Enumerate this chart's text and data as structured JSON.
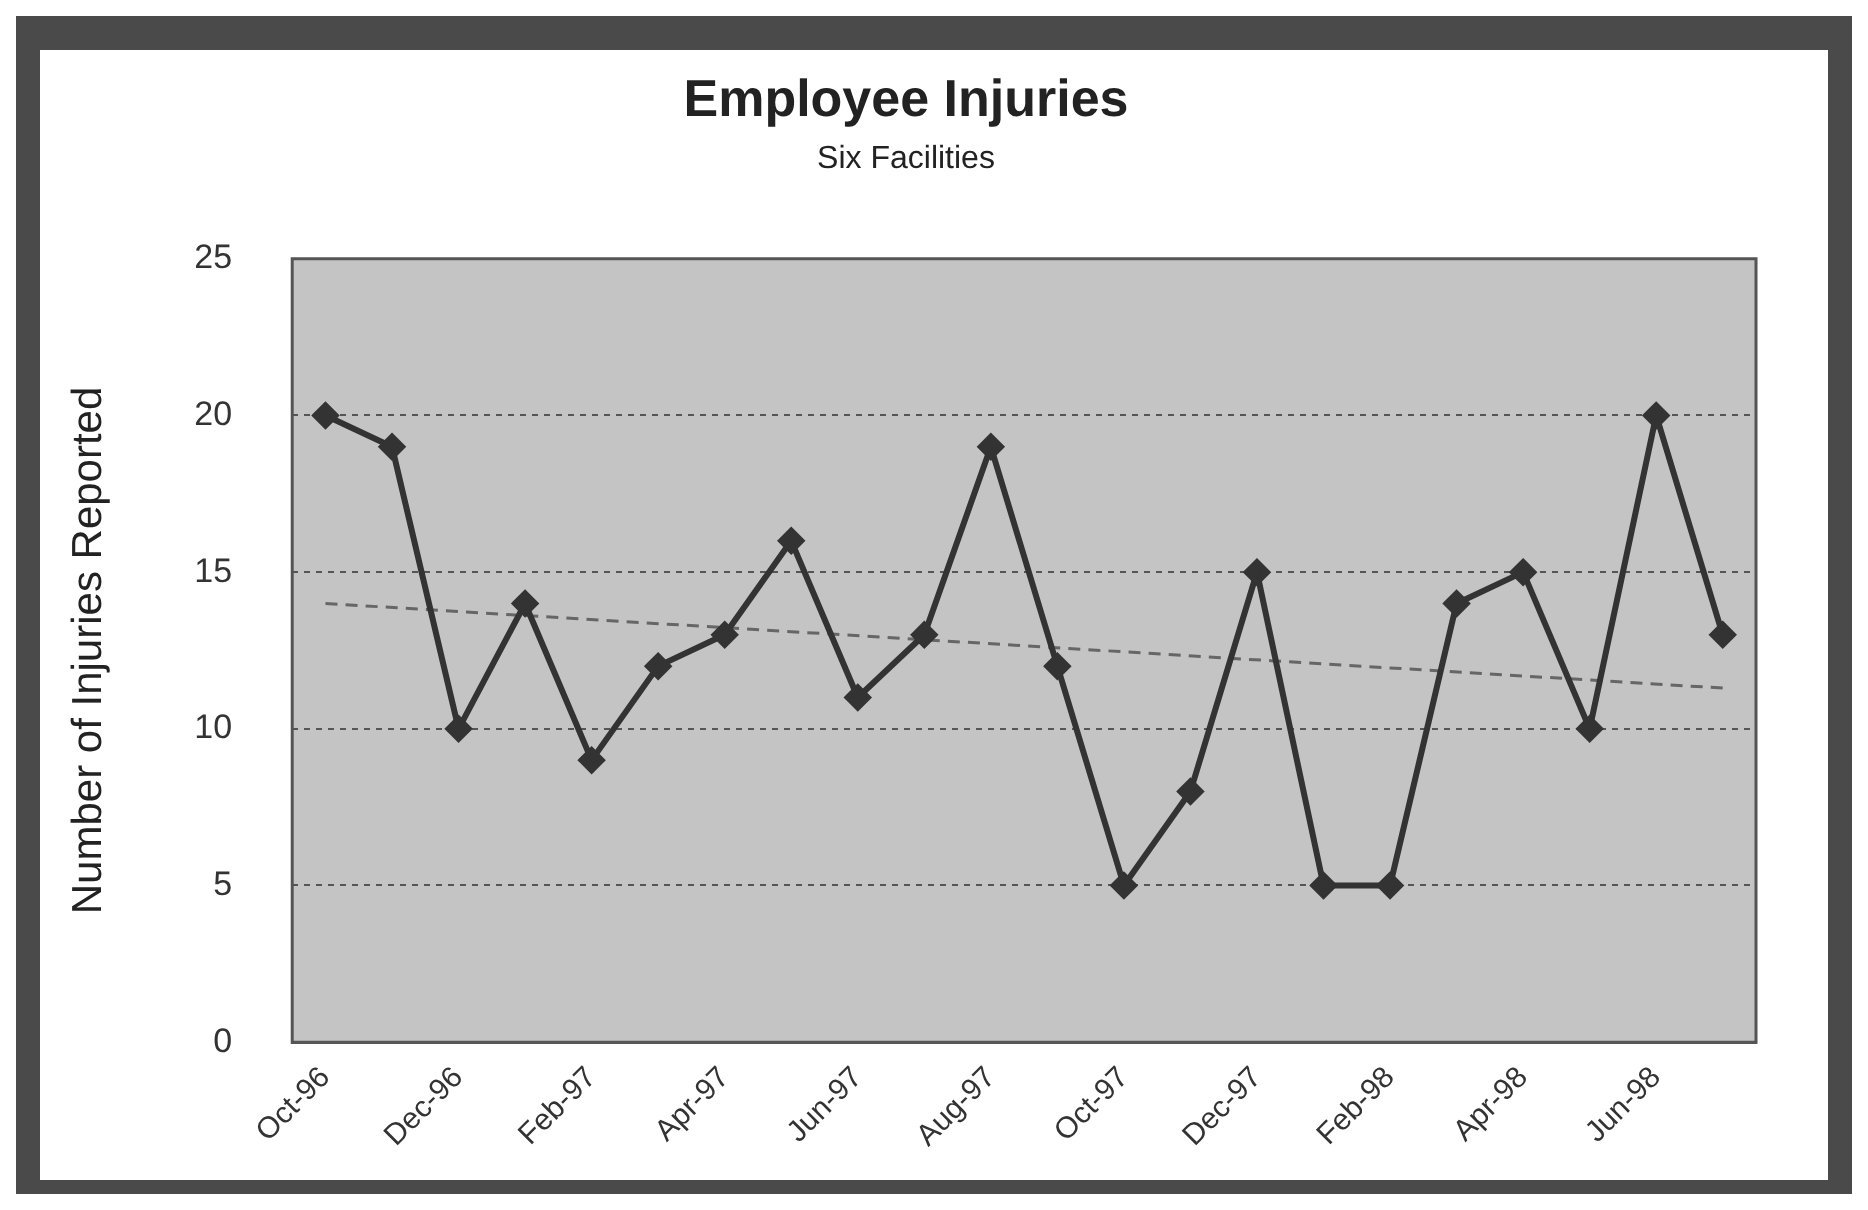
{
  "chart_data": {
    "type": "line",
    "title": "Employee Injuries",
    "subtitle": "Six Facilities",
    "ylabel": "Number of Injuries Reported",
    "categories": [
      "Oct-96",
      null,
      "Dec-96",
      null,
      "Feb-97",
      null,
      "Apr-97",
      null,
      "Jun-97",
      null,
      "Aug-97",
      null,
      "Oct-97",
      null,
      "Dec-97",
      null,
      "Feb-98",
      null,
      "Apr-98",
      null,
      "Jun-98",
      null
    ],
    "series": [
      {
        "color": "#333333",
        "values": [
          20,
          19,
          10,
          14,
          9,
          12,
          13,
          16,
          11,
          13,
          19,
          12,
          5,
          8,
          15,
          5,
          5,
          14,
          15,
          10,
          20,
          13
        ],
        "marker": "diamond",
        "line_style": "solid"
      },
      {
        "type": "line",
        "color": "#666666",
        "values": [
          14,
          null,
          null,
          null,
          null,
          null,
          null,
          null,
          null,
          null,
          null,
          null,
          null,
          null,
          null,
          null,
          null,
          null,
          null,
          null,
          null,
          11.3
        ],
        "marker": "none",
        "line_style": "dashed"
      }
    ],
    "ylim": [
      0,
      25
    ],
    "yticks": [
      0,
      5,
      10,
      15,
      20,
      25
    ],
    "grid": "y",
    "legend": false
  }
}
